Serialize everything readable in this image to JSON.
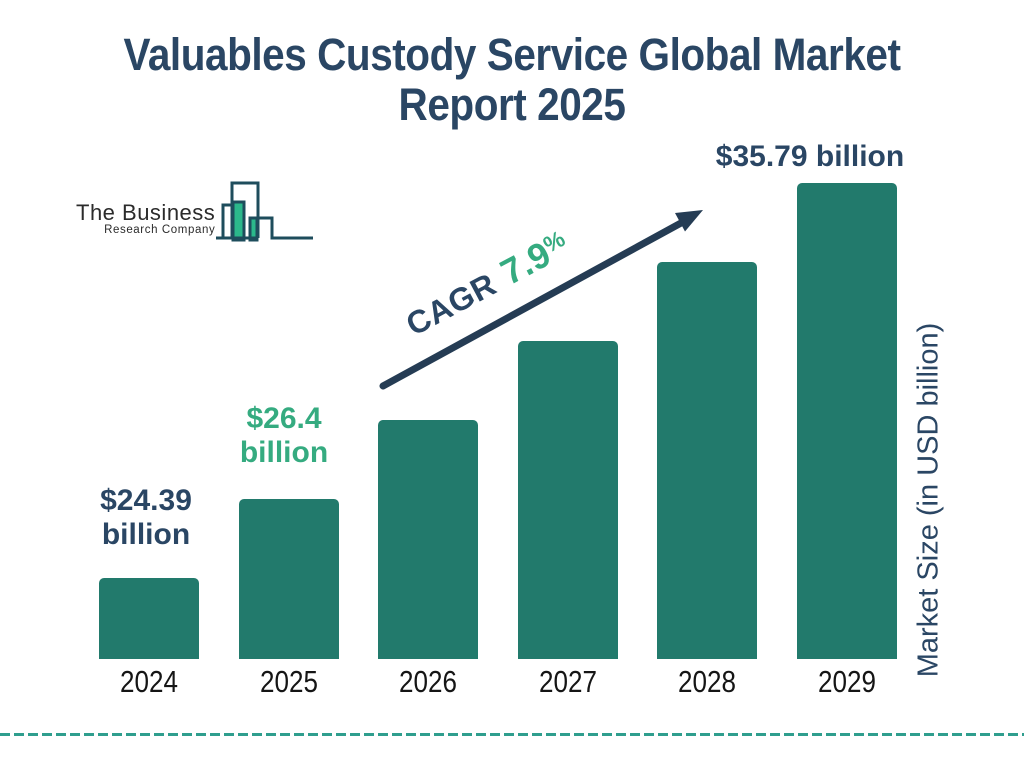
{
  "header": {
    "line1": "Valuables Custody Service Global Market",
    "line2": "Report 2025",
    "title_color": "#2a4664"
  },
  "logo": {
    "name_line1": "The Business",
    "name_line2": "Research Company"
  },
  "cagr": {
    "label": "CAGR",
    "value": "7.9",
    "percent_sign": "%",
    "label_color": "#2a4664",
    "value_color": "#35ab80"
  },
  "y_axis": {
    "label": "Market Size (in USD billion)"
  },
  "colors": {
    "bar": "#227a6c",
    "navy_text": "#2a4664",
    "green_text": "#35ab80",
    "arrow": "#253c54",
    "divider": "#2f9e8e",
    "logo_outline": "#1e4d5c",
    "logo_green": "#2bb88b"
  },
  "chart_data": {
    "type": "bar",
    "title": "Valuables Custody Service Global Market Report 2025",
    "categories": [
      "2024",
      "2025",
      "2026",
      "2027",
      "2028",
      "2029"
    ],
    "values": [
      24.39,
      26.4,
      28.5,
      30.7,
      33.2,
      35.79
    ],
    "bar_color": "#227a6c",
    "xlabel": "",
    "ylabel": "Market Size (in USD billion)",
    "grid": false,
    "legend": false,
    "cagr_annotation": "CAGR 7.9%",
    "value_labels": [
      {
        "category": "2024",
        "lines": [
          "$24.39",
          "billion"
        ],
        "color": "#2a4664"
      },
      {
        "category": "2025",
        "lines": [
          "$26.4",
          "billion"
        ],
        "color": "#35ab80"
      },
      {
        "category": "2029",
        "lines": [
          "$35.79 billion"
        ],
        "color": "#2a4664"
      }
    ]
  }
}
